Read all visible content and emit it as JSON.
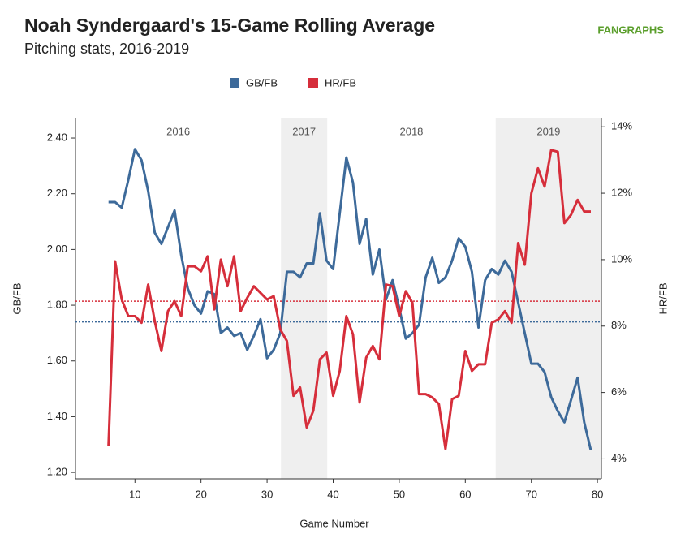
{
  "chart_data": {
    "type": "line",
    "title": "Noah Syndergaard's 15-Game Rolling Average",
    "subtitle": "Pitching stats, 2016-2019",
    "logo": "FANGRAPHS",
    "x_label": "Game Number",
    "y_label": "GB/FB",
    "y2_label": "HR/FB",
    "x": [
      6,
      7,
      8,
      9,
      10,
      11,
      12,
      13,
      14,
      15,
      16,
      17,
      18,
      19,
      20,
      21,
      22,
      23,
      24,
      25,
      26,
      27,
      28,
      29,
      30,
      31,
      32,
      33,
      34,
      35,
      36,
      37,
      38,
      39,
      40,
      41,
      42,
      43,
      44,
      45,
      46,
      47,
      48,
      49,
      50,
      51,
      52,
      53,
      54,
      55,
      56,
      57,
      58,
      59,
      60,
      61,
      62,
      63,
      64,
      65,
      66,
      67,
      68,
      69,
      70,
      71,
      72,
      73,
      74,
      75,
      76,
      77,
      78,
      79
    ],
    "series": [
      {
        "name": "GB/FB",
        "color": "#3d6a9a",
        "axis": "y",
        "values": [
          2.17,
          2.17,
          2.15,
          2.25,
          2.36,
          2.32,
          2.21,
          2.06,
          2.02,
          2.08,
          2.14,
          1.98,
          1.86,
          1.8,
          1.77,
          1.85,
          1.84,
          1.7,
          1.72,
          1.69,
          1.7,
          1.64,
          1.69,
          1.75,
          1.61,
          1.64,
          1.7,
          1.92,
          1.92,
          1.9,
          1.95,
          1.95,
          2.13,
          1.96,
          1.93,
          2.13,
          2.33,
          2.24,
          2.02,
          2.11,
          1.91,
          2.0,
          1.82,
          1.89,
          1.79,
          1.68,
          1.7,
          1.73,
          1.9,
          1.97,
          1.88,
          1.9,
          1.96,
          2.04,
          2.01,
          1.92,
          1.72,
          1.89,
          1.93,
          1.91,
          1.96,
          1.92,
          1.81,
          1.7,
          1.59,
          1.59,
          1.56,
          1.47,
          1.42,
          1.38,
          1.46,
          1.54,
          1.38,
          1.28
        ]
      },
      {
        "name": "HR/FB",
        "color": "#d62e3b",
        "axis": "y2",
        "values": [
          4.4,
          9.95,
          8.8,
          8.3,
          8.3,
          8.1,
          9.25,
          8.15,
          7.25,
          8.45,
          8.75,
          8.3,
          9.8,
          9.8,
          9.65,
          10.1,
          8.5,
          10.0,
          9.2,
          10.1,
          8.45,
          8.85,
          9.2,
          9.0,
          8.8,
          8.9,
          7.9,
          7.55,
          5.9,
          6.15,
          4.95,
          5.45,
          7.0,
          7.2,
          5.9,
          6.65,
          8.3,
          7.75,
          5.7,
          7.05,
          7.4,
          7.0,
          9.25,
          9.2,
          8.3,
          9.05,
          8.7,
          5.95,
          5.95,
          5.85,
          5.65,
          4.3,
          5.8,
          5.9,
          7.25,
          6.65,
          6.85,
          6.85,
          8.1,
          8.2,
          8.45,
          8.1,
          10.5,
          9.85,
          12.0,
          12.75,
          12.2,
          13.3,
          13.25,
          11.1,
          11.35,
          11.8,
          11.45,
          11.45
        ]
      }
    ],
    "reference_lines": [
      {
        "axis": "y",
        "value": 1.74,
        "color": "#3d6a9a"
      },
      {
        "axis": "y2",
        "value": 8.75,
        "color": "#d62e3b"
      }
    ],
    "seasons": [
      {
        "label": "2016",
        "start": 1,
        "end": 32.1,
        "shaded": false
      },
      {
        "label": "2017",
        "start": 32.1,
        "end": 39.1,
        "shaded": true
      },
      {
        "label": "2018",
        "start": 39.1,
        "end": 64.6,
        "shaded": false
      },
      {
        "label": "2019",
        "start": 64.6,
        "end": 80.6,
        "shaded": true
      }
    ],
    "xlim": [
      1,
      80.6
    ],
    "xticks": [
      10,
      20,
      30,
      40,
      50,
      60,
      70,
      80
    ],
    "ylim": [
      1.177,
      2.47
    ],
    "yticks": [
      {
        "value": 1.2,
        "label": "1.20"
      },
      {
        "value": 1.4,
        "label": "1.40"
      },
      {
        "value": 1.6,
        "label": "1.60"
      },
      {
        "value": 1.8,
        "label": "1.80"
      },
      {
        "value": 2.0,
        "label": "2.00"
      },
      {
        "value": 2.2,
        "label": "2.20"
      },
      {
        "value": 2.4,
        "label": "2.40"
      }
    ],
    "y2lim": [
      3.4,
      14.25
    ],
    "y2ticks": [
      {
        "value": 4,
        "label": "4%"
      },
      {
        "value": 6,
        "label": "6%"
      },
      {
        "value": 8,
        "label": "8%"
      },
      {
        "value": 10,
        "label": "10%"
      },
      {
        "value": 12,
        "label": "12%"
      },
      {
        "value": 14,
        "label": "14%"
      }
    ],
    "legend": "top"
  }
}
